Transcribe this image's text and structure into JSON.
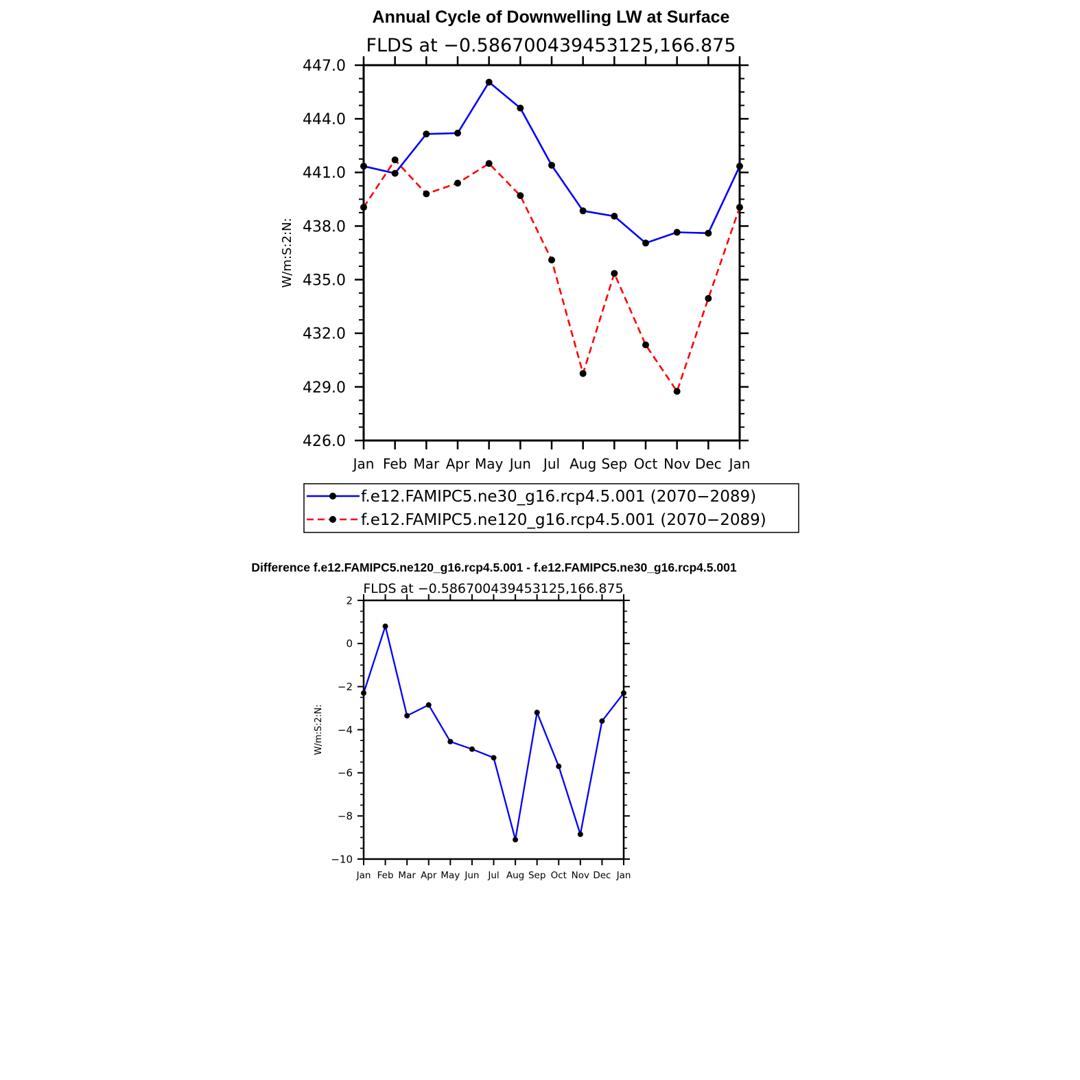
{
  "chart_data": [
    {
      "type": "line",
      "title": "Annual Cycle of Downwelling LW at Surface",
      "subtitle": "FLDS at −0.586700439453125,166.875",
      "ylabel": "W/m:S:2:N:",
      "xlabel": "",
      "categories": [
        "Jan",
        "Feb",
        "Mar",
        "Apr",
        "May",
        "Jun",
        "Jul",
        "Aug",
        "Sep",
        "Oct",
        "Nov",
        "Dec",
        "Jan"
      ],
      "ylim": [
        426.0,
        447.0
      ],
      "yticks": [
        "426.0",
        "429.0",
        "432.0",
        "435.0",
        "438.0",
        "441.0",
        "444.0",
        "447.0"
      ],
      "legend_position": "bottom",
      "series": [
        {
          "name": "f.e12.FAMIPC5.ne30_g16.rcp4.5.001 (2070−2089)",
          "color": "#0000ff",
          "dashed": false,
          "values": [
            441.35,
            440.95,
            443.15,
            443.2,
            446.05,
            444.6,
            441.4,
            438.85,
            438.55,
            437.05,
            437.65,
            437.6,
            441.35
          ]
        },
        {
          "name": "f.e12.FAMIPC5.ne120_g16.rcp4.5.001 (2070−2089)",
          "color": "#ff0000",
          "dashed": true,
          "values": [
            439.05,
            441.7,
            439.8,
            440.4,
            441.5,
            439.7,
            436.1,
            429.75,
            435.35,
            431.35,
            428.75,
            433.95,
            439.05
          ]
        }
      ]
    },
    {
      "type": "line",
      "title": "Difference f.e12.FAMIPC5.ne120_g16.rcp4.5.001 - f.e12.FAMIPC5.ne30_g16.rcp4.5.001",
      "subtitle": "FLDS at −0.586700439453125,166.875",
      "ylabel": "W/m:S:2:N:",
      "xlabel": "",
      "categories": [
        "Jan",
        "Feb",
        "Mar",
        "Apr",
        "May",
        "Jun",
        "Jul",
        "Aug",
        "Sep",
        "Oct",
        "Nov",
        "Dec",
        "Jan"
      ],
      "ylim": [
        -10,
        2
      ],
      "yticks": [
        "−10",
        "−8",
        "−6",
        "−4",
        "−2",
        "0",
        "2"
      ],
      "series": [
        {
          "name": "",
          "color": "#0000ff",
          "dashed": false,
          "values": [
            -2.3,
            0.8,
            -3.35,
            -2.85,
            -4.55,
            -4.9,
            -5.3,
            -9.1,
            -3.2,
            -5.7,
            -8.85,
            -3.6,
            -2.3
          ]
        }
      ]
    }
  ]
}
